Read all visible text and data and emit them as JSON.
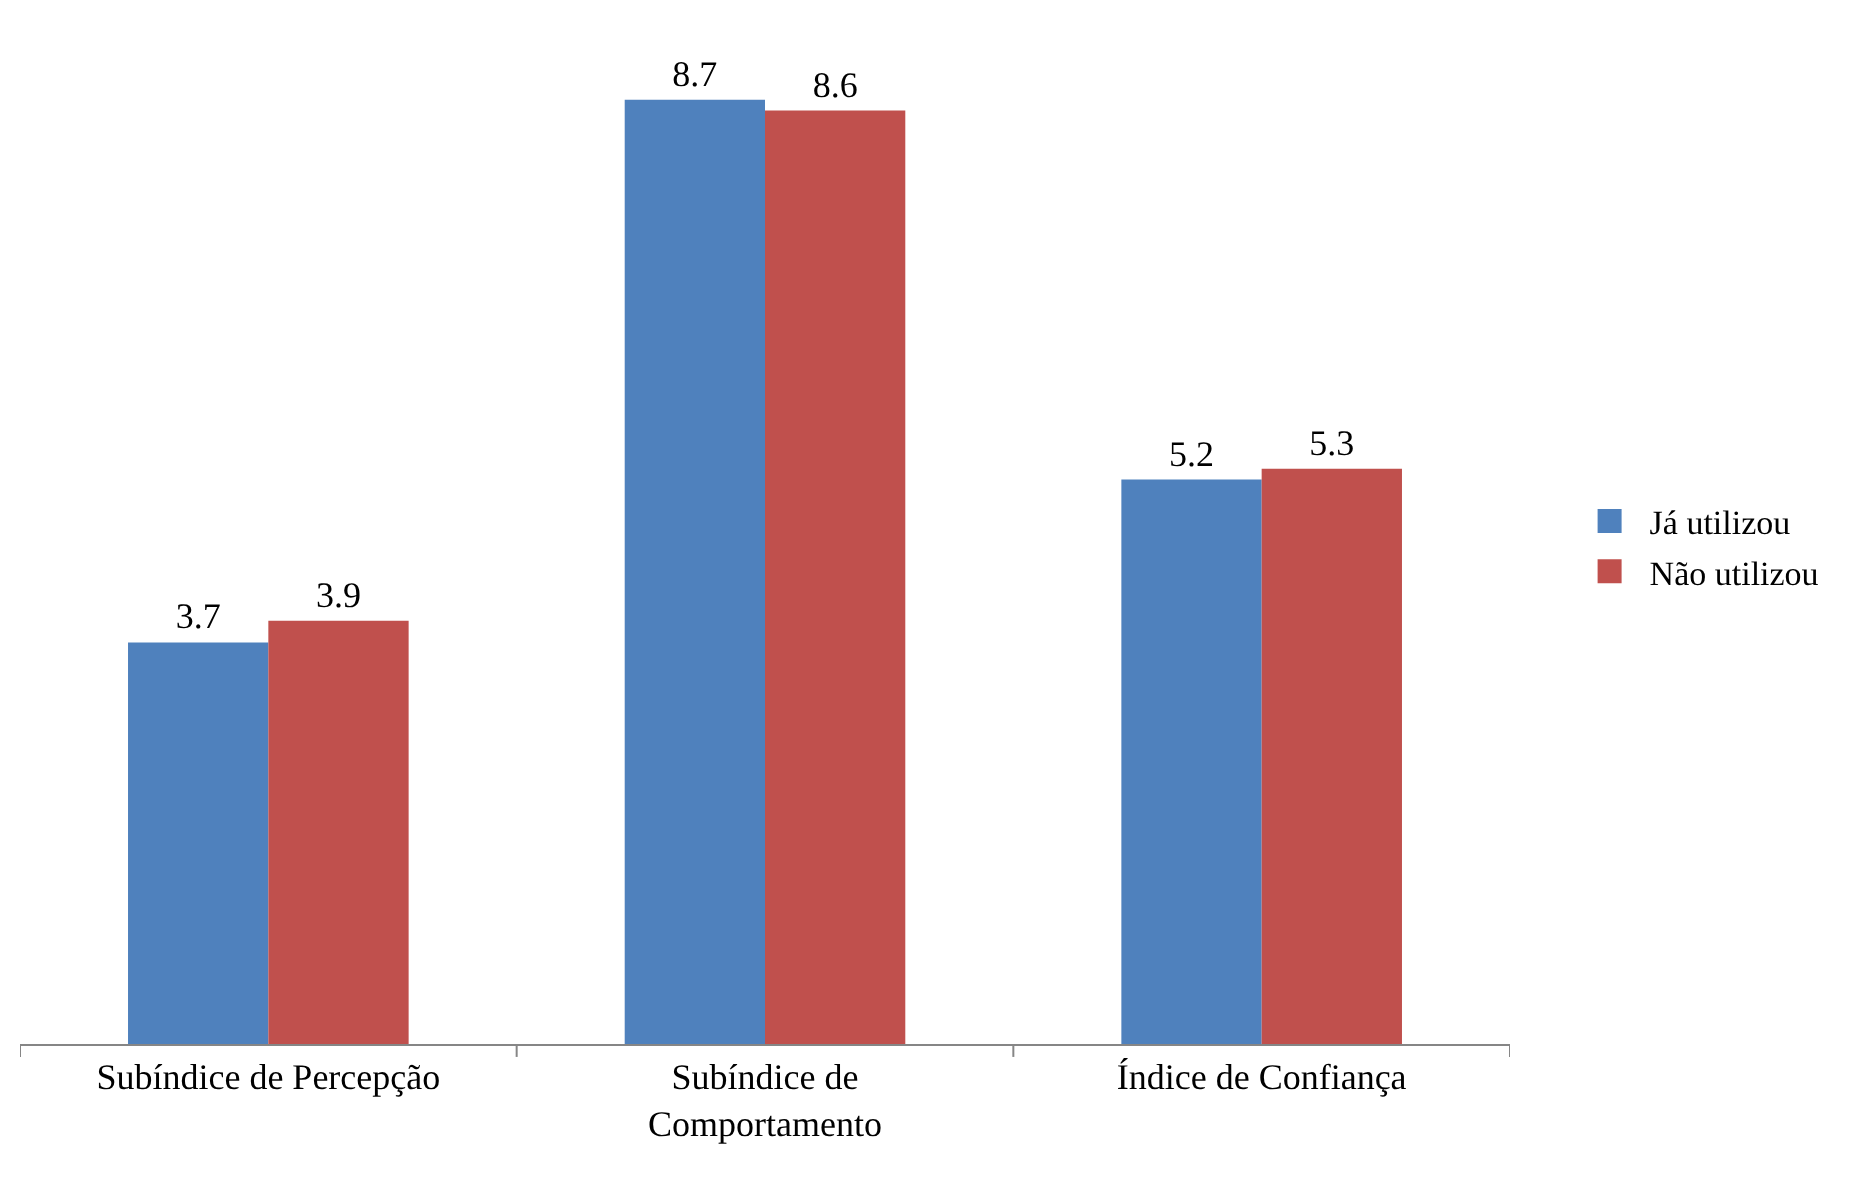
{
  "chart_data": {
    "type": "bar",
    "categories": [
      "Subíndice de Percepção",
      "Subíndice de Comportamento",
      "Índice de Confiança"
    ],
    "series": [
      {
        "name": "Já utilizou",
        "color": "#4f81bd",
        "values": [
          3.7,
          8.7,
          5.2
        ]
      },
      {
        "name": "Não utilizou",
        "color": "#c0504d",
        "values": [
          3.9,
          8.6,
          5.3
        ]
      }
    ],
    "data_labels": true,
    "legend": "right",
    "tick_labels": "x"
  }
}
